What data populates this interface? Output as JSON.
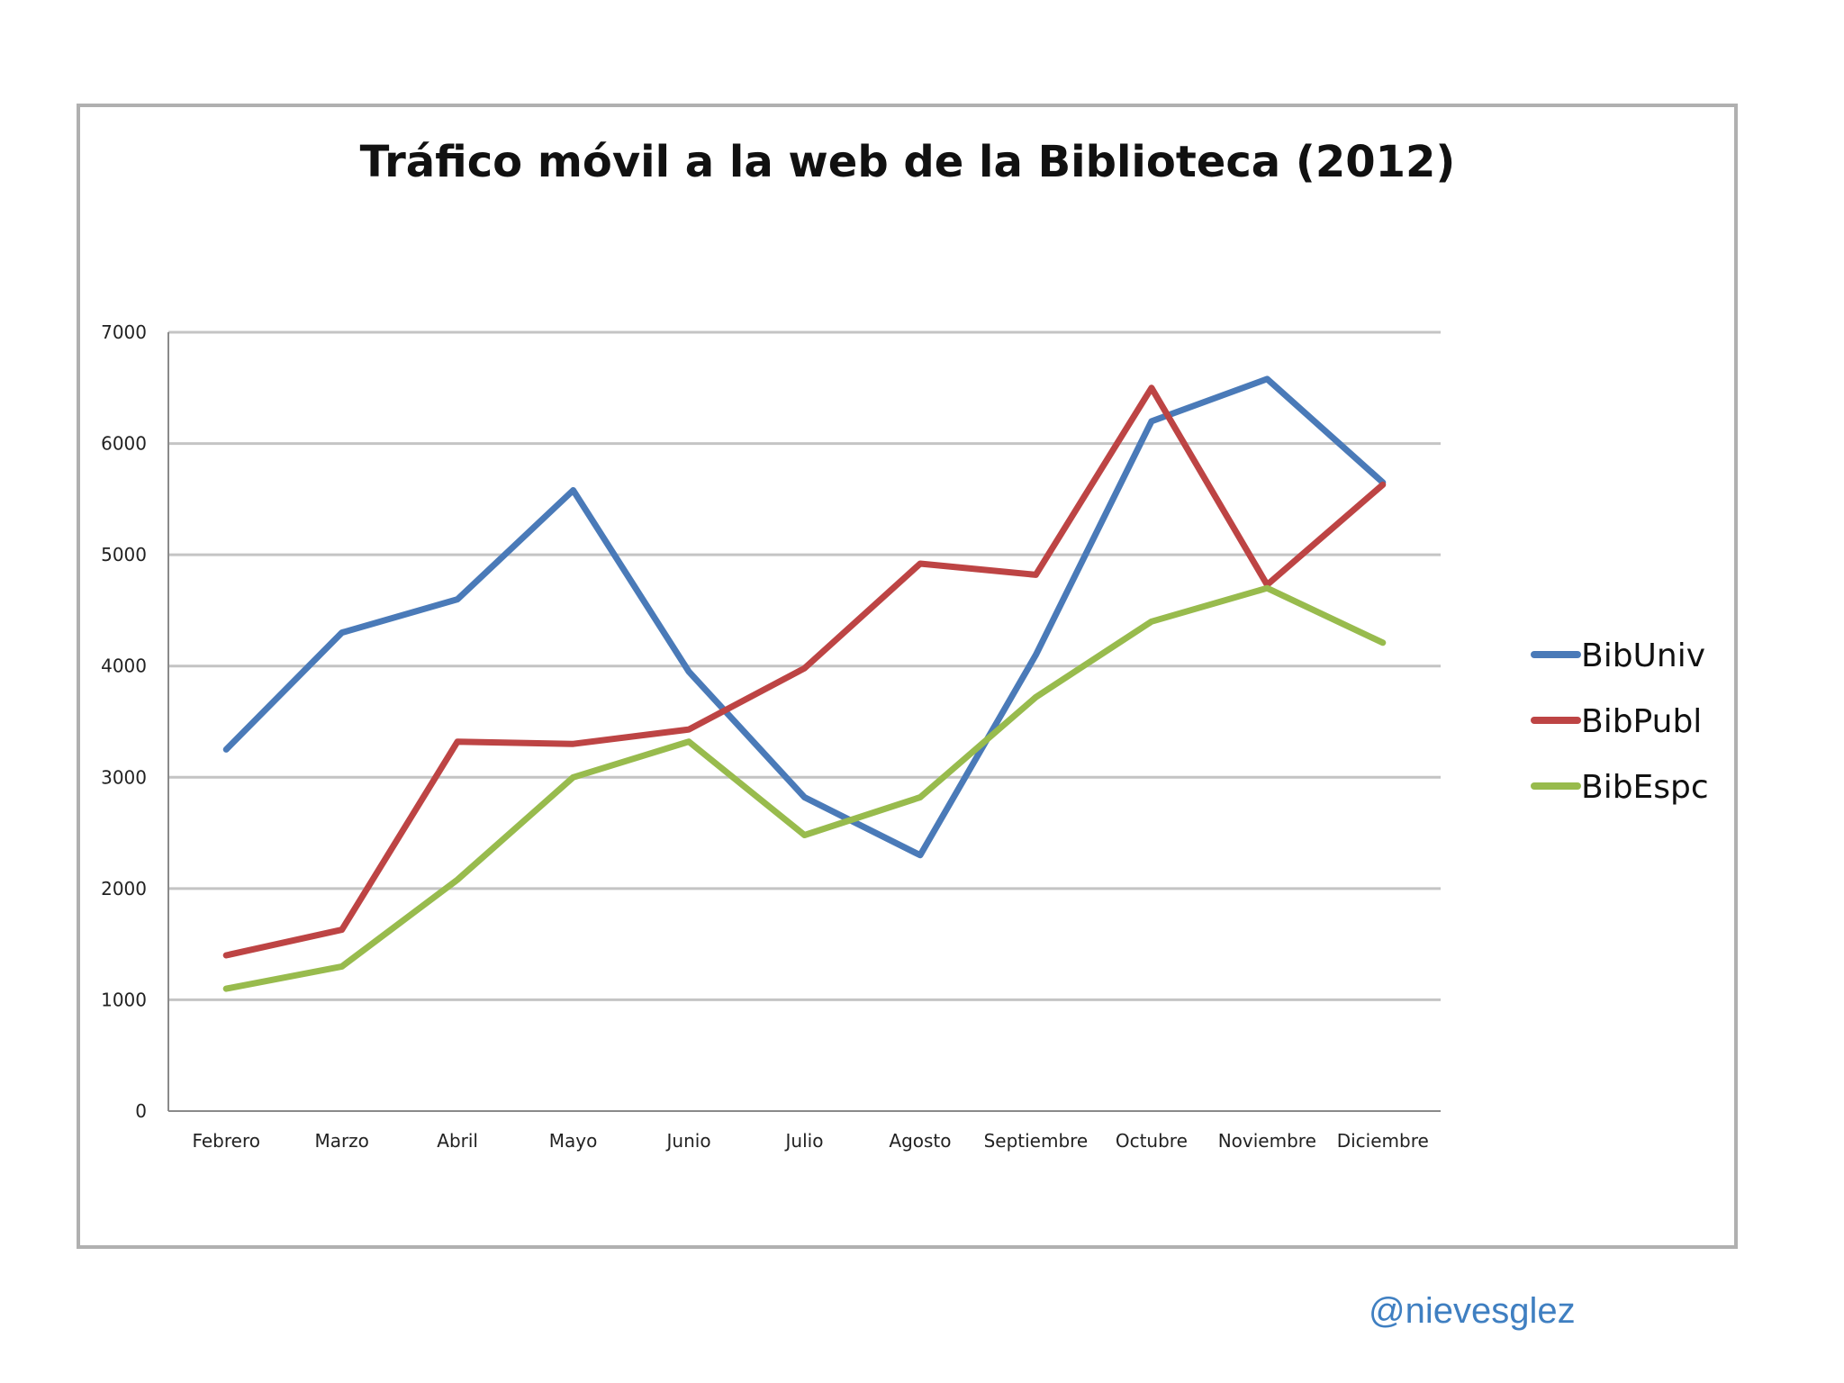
{
  "watermark": "@nievesglez",
  "colors": {
    "BibUniv": "#4a7ab8",
    "BibPubl": "#bd4444",
    "BibEspc": "#98bb4d",
    "grid": "#c4c4c4",
    "frame": "#b0b0b0",
    "axis": "#8a8a8a"
  },
  "chart_data": {
    "type": "line",
    "title": "Tráfico móvil a la web de la Biblioteca (2012)",
    "xlabel": "",
    "ylabel": "",
    "categories": [
      "Febrero",
      "Marzo",
      "Abril",
      "Mayo",
      "Junio",
      "Julio",
      "Agosto",
      "Septiembre",
      "Octubre",
      "Noviembre",
      "Diciembre"
    ],
    "yticks": [
      "0",
      "1000",
      "2000",
      "3000",
      "4000",
      "5000",
      "6000",
      "7000"
    ],
    "ylim": [
      0,
      7000
    ],
    "grid": true,
    "legend_position": "right",
    "series": [
      {
        "name": "BibUniv",
        "values": [
          3250,
          4300,
          4600,
          5580,
          3950,
          2820,
          2300,
          4100,
          6200,
          6580,
          5650
        ]
      },
      {
        "name": "BibPubl",
        "values": [
          1400,
          1630,
          3320,
          3300,
          3430,
          3980,
          4920,
          4820,
          6500,
          4730,
          5630
        ]
      },
      {
        "name": "BibEspc",
        "values": [
          1100,
          1300,
          2080,
          3000,
          3320,
          2480,
          2820,
          3720,
          4400,
          4700,
          4210
        ]
      }
    ]
  }
}
